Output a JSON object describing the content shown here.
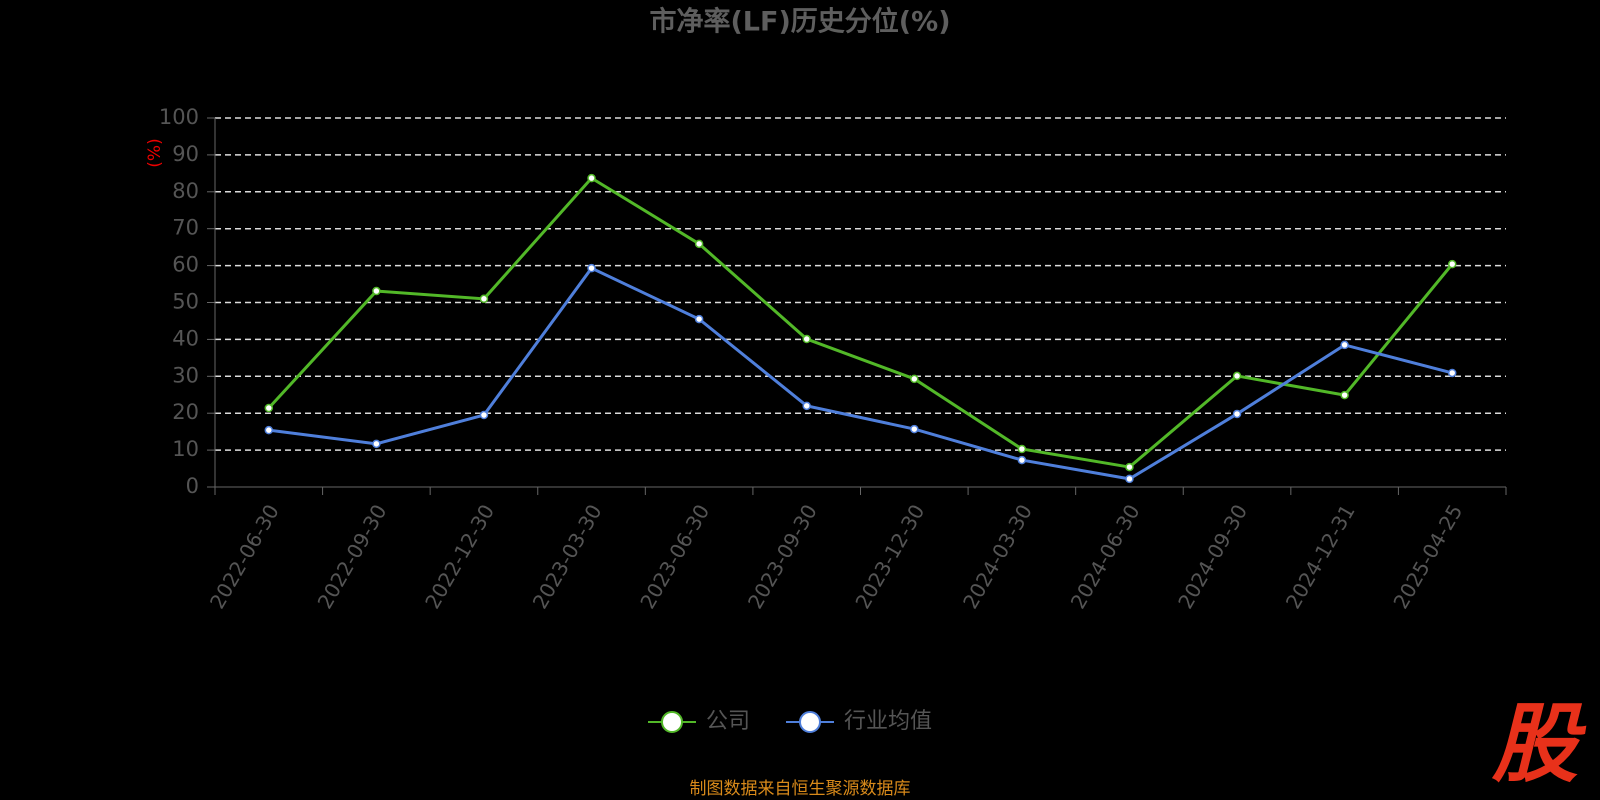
{
  "chart_data": {
    "type": "line",
    "title": "市净率(LF)历史分位(%)",
    "y_label": "(%)",
    "categories": [
      "2022-06-30",
      "2022-09-30",
      "2022-12-30",
      "2023-03-30",
      "2023-06-30",
      "2023-09-30",
      "2023-12-30",
      "2024-03-30",
      "2024-06-30",
      "2024-09-30",
      "2024-12-31",
      "2025-04-25"
    ],
    "series": [
      {
        "name": "公司",
        "color": "#52b828",
        "values": [
          21.4,
          53.1,
          51.0,
          83.7,
          65.9,
          40.1,
          29.3,
          10.3,
          5.4,
          30.1,
          24.9,
          60.4
        ]
      },
      {
        "name": "行业均值",
        "color": "#4f7fdb",
        "values": [
          15.4,
          11.7,
          19.5,
          59.3,
          45.5,
          22.0,
          15.7,
          7.3,
          2.2,
          19.8,
          38.5,
          30.9
        ]
      }
    ],
    "ylim": [
      0,
      100
    ],
    "yticks": [
      0,
      10,
      20,
      30,
      40,
      50,
      60,
      70,
      80,
      90,
      100
    ],
    "grid": true,
    "legend": "bottom",
    "source": "制图数据来自恒生聚源数据库",
    "watermark": "股"
  }
}
